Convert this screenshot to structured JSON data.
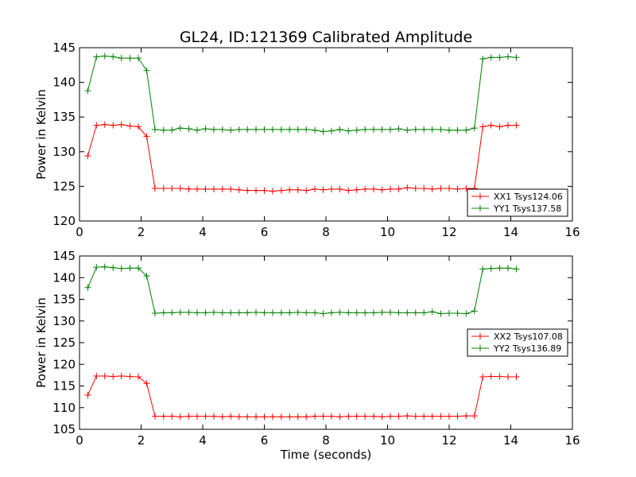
{
  "title": "GL24, ID:121369 Calibrated Amplitude",
  "chart_data": [
    {
      "type": "line",
      "title": "GL24, ID:121369 Calibrated Amplitude",
      "xlabel": "",
      "ylabel": "Power in Kelvin",
      "xlim": [
        0,
        16
      ],
      "ylim": [
        120,
        145
      ],
      "xticks": [
        0,
        2,
        4,
        6,
        8,
        10,
        12,
        14,
        16
      ],
      "yticks": [
        120,
        125,
        130,
        135,
        140,
        145
      ],
      "grid": false,
      "legend_position": "lower-right",
      "x": [
        0.27,
        0.55,
        0.82,
        1.09,
        1.36,
        1.64,
        1.91,
        2.18,
        2.45,
        2.73,
        3.0,
        3.27,
        3.55,
        3.82,
        4.09,
        4.36,
        4.64,
        4.91,
        5.18,
        5.45,
        5.73,
        6.0,
        6.27,
        6.55,
        6.82,
        7.09,
        7.36,
        7.64,
        7.91,
        8.18,
        8.45,
        8.73,
        9.0,
        9.27,
        9.55,
        9.82,
        10.09,
        10.36,
        10.64,
        10.91,
        11.18,
        11.45,
        11.73,
        12.0,
        12.27,
        12.55,
        12.82,
        13.09,
        13.36,
        13.64,
        13.91,
        14.18
      ],
      "series": [
        {
          "name": "XX1 Tsys124.06",
          "color": "#ff0000",
          "values": [
            129.4,
            133.8,
            133.9,
            133.8,
            133.9,
            133.7,
            133.6,
            132.2,
            124.7,
            124.7,
            124.7,
            124.7,
            124.6,
            124.6,
            124.6,
            124.6,
            124.6,
            124.6,
            124.5,
            124.4,
            124.4,
            124.4,
            124.3,
            124.4,
            124.5,
            124.5,
            124.4,
            124.6,
            124.5,
            124.6,
            124.6,
            124.4,
            124.5,
            124.6,
            124.6,
            124.5,
            124.6,
            124.6,
            124.8,
            124.7,
            124.7,
            124.6,
            124.7,
            124.7,
            124.6,
            124.7,
            124.7,
            133.6,
            133.8,
            133.6,
            133.8,
            133.8
          ]
        },
        {
          "name": "YY1 Tsys137.58",
          "color": "#008000",
          "values": [
            138.8,
            143.7,
            143.8,
            143.7,
            143.5,
            143.5,
            143.5,
            141.7,
            133.2,
            133.1,
            133.1,
            133.4,
            133.3,
            133.1,
            133.3,
            133.2,
            133.2,
            133.1,
            133.2,
            133.2,
            133.2,
            133.2,
            133.2,
            133.2,
            133.2,
            133.2,
            133.2,
            133.1,
            132.9,
            133.0,
            133.2,
            133.0,
            133.1,
            133.2,
            133.2,
            133.2,
            133.2,
            133.3,
            133.1,
            133.2,
            133.2,
            133.2,
            133.2,
            133.1,
            133.1,
            133.1,
            133.4,
            143.4,
            143.6,
            143.6,
            143.7,
            143.6
          ]
        }
      ]
    },
    {
      "type": "line",
      "title": "",
      "xlabel": "Time (seconds)",
      "ylabel": "Power in Kelvin",
      "xlim": [
        0,
        16
      ],
      "ylim": [
        105,
        145
      ],
      "xticks": [
        0,
        2,
        4,
        6,
        8,
        10,
        12,
        14,
        16
      ],
      "yticks": [
        105,
        110,
        115,
        120,
        125,
        130,
        135,
        140,
        145
      ],
      "grid": false,
      "legend_position": "center-right",
      "x": [
        0.27,
        0.55,
        0.82,
        1.09,
        1.36,
        1.64,
        1.91,
        2.18,
        2.45,
        2.73,
        3.0,
        3.27,
        3.55,
        3.82,
        4.09,
        4.36,
        4.64,
        4.91,
        5.18,
        5.45,
        5.73,
        6.0,
        6.27,
        6.55,
        6.82,
        7.09,
        7.36,
        7.64,
        7.91,
        8.18,
        8.45,
        8.73,
        9.0,
        9.27,
        9.55,
        9.82,
        10.09,
        10.36,
        10.64,
        10.91,
        11.18,
        11.45,
        11.73,
        12.0,
        12.27,
        12.55,
        12.82,
        13.09,
        13.36,
        13.64,
        13.91,
        14.18
      ],
      "series": [
        {
          "name": "XX2 Tsys107.08",
          "color": "#ff0000",
          "values": [
            112.9,
            117.3,
            117.3,
            117.2,
            117.3,
            117.2,
            117.1,
            115.6,
            108.0,
            108.0,
            108.0,
            107.9,
            108.0,
            108.0,
            108.0,
            108.0,
            107.9,
            108.0,
            107.9,
            107.9,
            107.9,
            107.9,
            107.9,
            107.9,
            107.9,
            107.9,
            107.9,
            108.0,
            108.0,
            108.0,
            107.9,
            108.0,
            108.0,
            108.0,
            108.0,
            107.9,
            108.0,
            108.0,
            108.1,
            108.0,
            108.0,
            108.0,
            108.0,
            108.0,
            108.0,
            108.1,
            108.1,
            117.1,
            117.2,
            117.2,
            117.1,
            117.1
          ]
        },
        {
          "name": "YY2 Tsys136.89",
          "color": "#008000",
          "values": [
            137.7,
            142.4,
            142.5,
            142.3,
            142.1,
            142.2,
            142.2,
            140.4,
            131.8,
            131.9,
            131.9,
            132.0,
            132.0,
            131.9,
            131.9,
            132.0,
            131.9,
            131.9,
            131.9,
            131.9,
            132.0,
            131.9,
            131.9,
            131.9,
            131.9,
            132.0,
            131.9,
            131.9,
            131.7,
            131.9,
            132.0,
            131.9,
            131.9,
            131.9,
            131.9,
            132.0,
            132.0,
            131.9,
            131.9,
            131.9,
            131.9,
            132.1,
            131.7,
            131.8,
            131.8,
            131.7,
            132.3,
            142.0,
            142.1,
            142.2,
            142.2,
            142.0
          ]
        }
      ]
    }
  ]
}
